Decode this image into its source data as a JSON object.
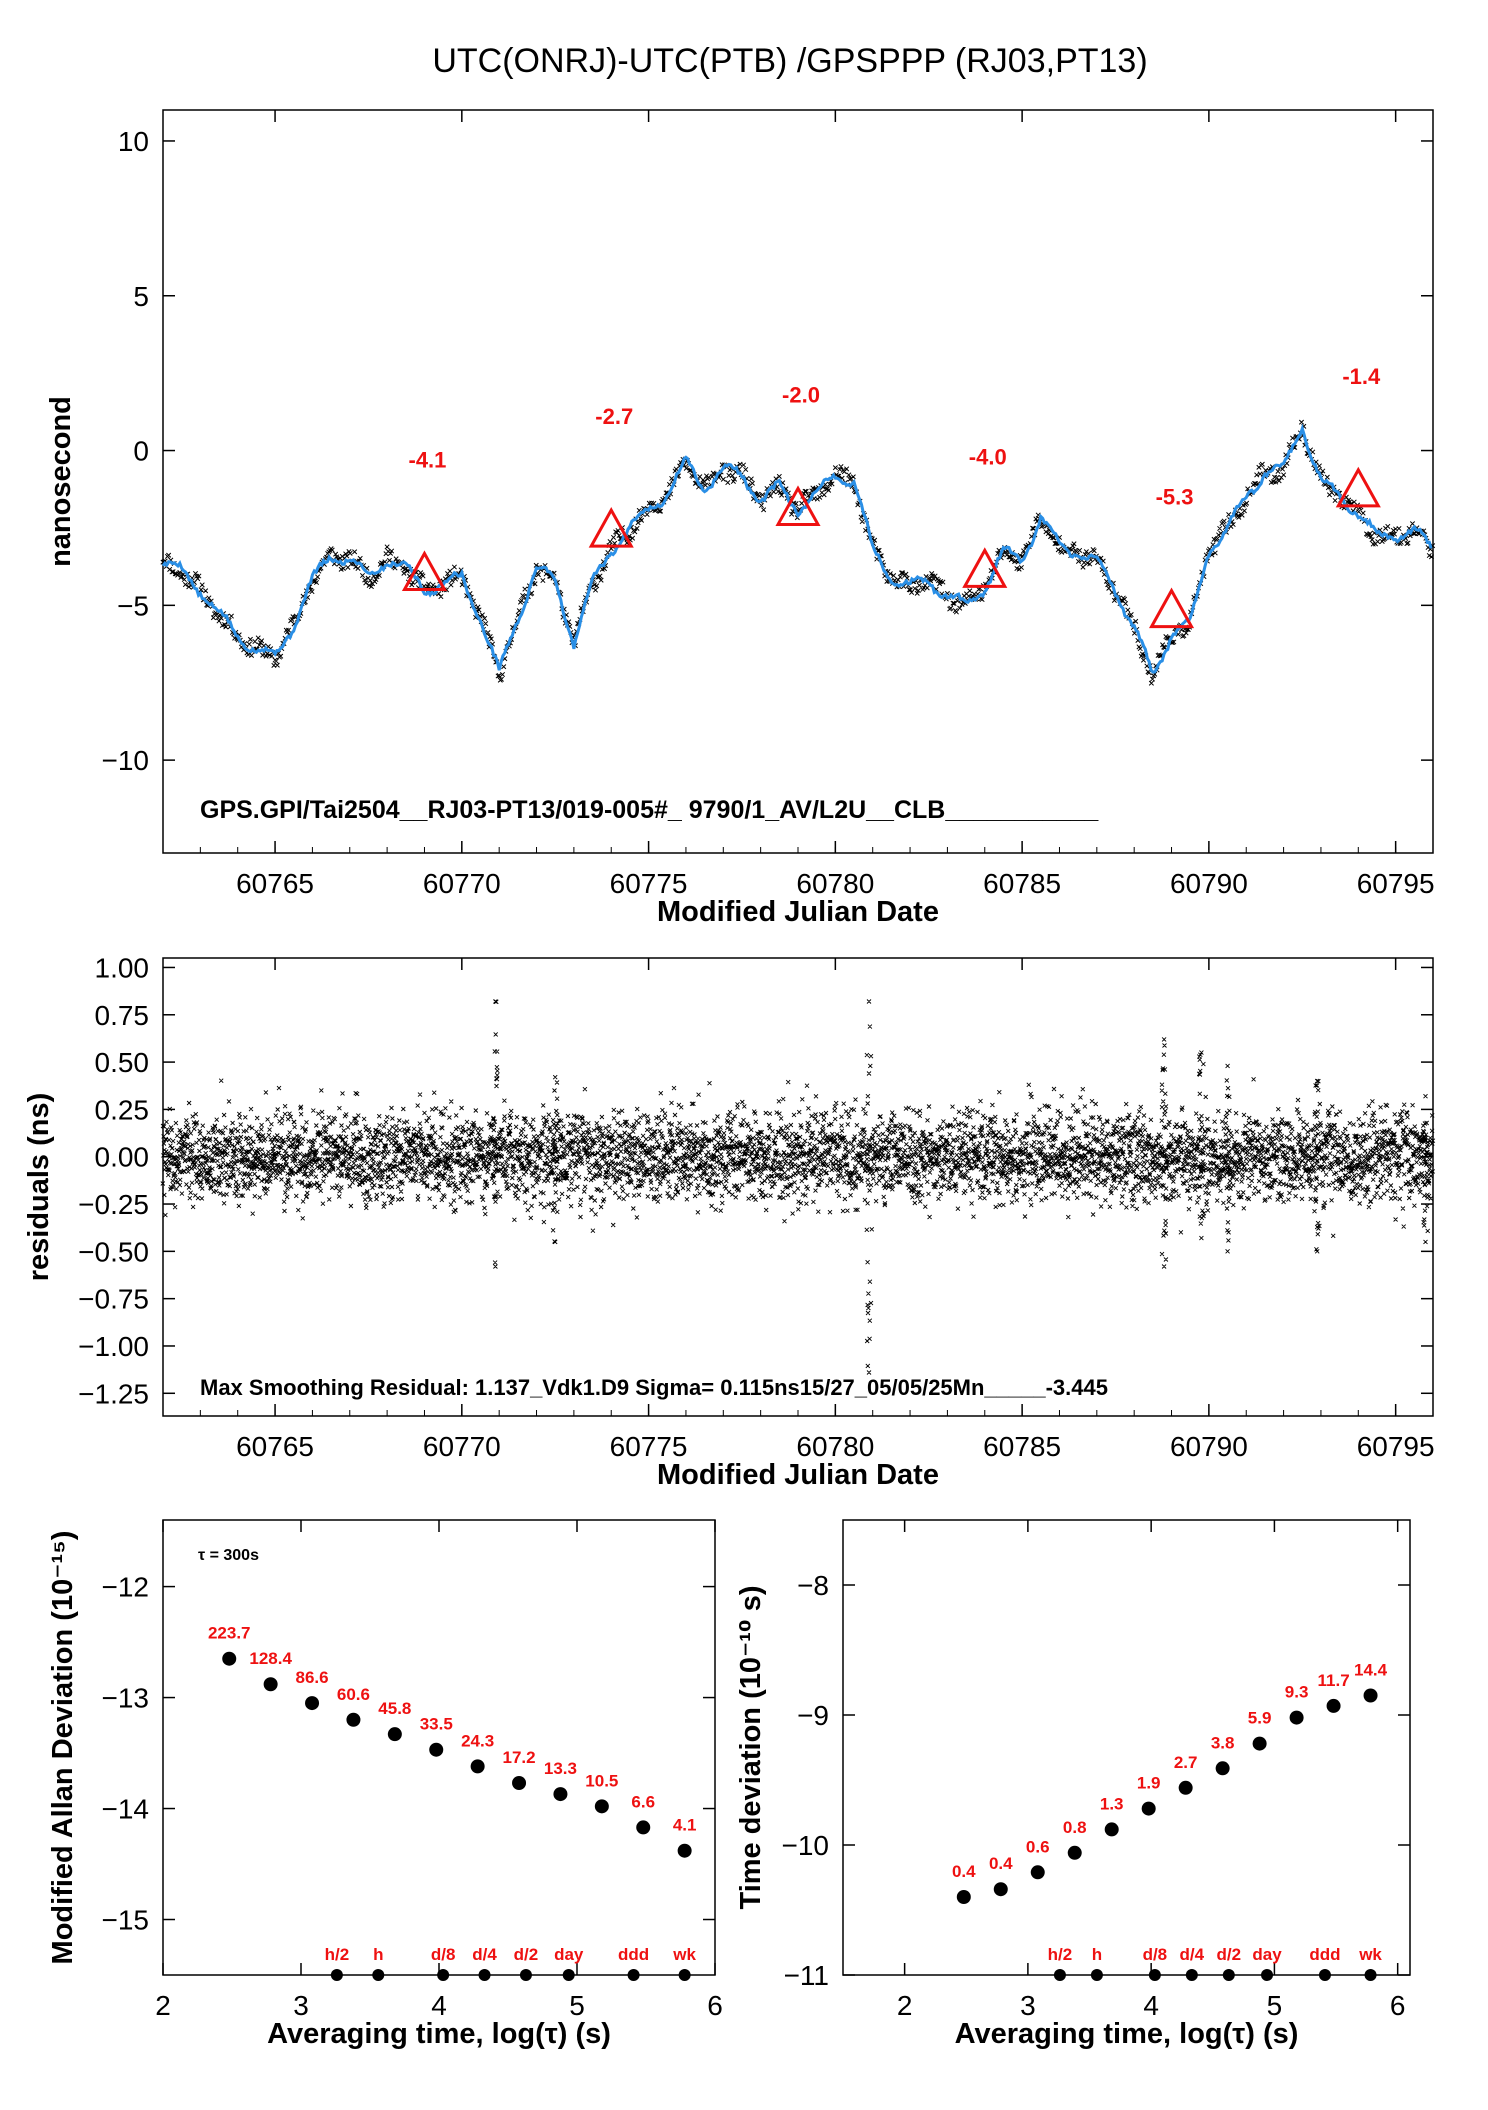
{
  "title": "UTC(ONRJ)-UTC(PTB)  /GPSPPP  (RJ03,PT13)",
  "chart_data": [
    {
      "type": "line",
      "id": "time_series",
      "xlabel": "Modified Julian Date",
      "ylabel": "nanosecond",
      "xlim": [
        60762,
        60796
      ],
      "ylim": [
        -13,
        11
      ],
      "xticks": [
        "60765",
        "60770",
        "60775",
        "60780",
        "60785",
        "60790",
        "60795"
      ],
      "yticks": [
        "10",
        "5",
        "0",
        "−5",
        "−10"
      ],
      "annotation": "GPS.GPI/Tai2504__RJ03-PT13/019-005#_  9790/1_AV/L2U__CLB___________",
      "series_color": "#2a8fe6",
      "series": [
        {
          "x": [
            60762.0,
            60762.5,
            60763.0,
            60763.5,
            60764.0,
            60764.5,
            60765.0,
            60765.5,
            60766.0,
            60766.5,
            60767.0,
            60767.5,
            60768.0,
            60768.5,
            60769.0,
            60769.5,
            60770.0,
            60770.5,
            60771.0,
            60771.5,
            60772.0,
            60772.5,
            60773.0,
            60773.5,
            60774.0,
            60774.5,
            60775.0,
            60775.5,
            60776.0,
            60776.5,
            60777.0,
            60777.5,
            60778.0,
            60778.5,
            60779.0,
            60779.5,
            60780.0,
            60780.5,
            60781.0,
            60781.5,
            60782.0,
            60782.5,
            60783.0,
            60783.5,
            60784.0,
            60784.5,
            60785.0,
            60785.5,
            60786.0,
            60786.5,
            60787.0,
            60787.5,
            60788.0,
            60788.5,
            60789.0,
            60789.5,
            60790.0,
            60790.5,
            60791.0,
            60791.5,
            60792.0,
            60792.5,
            60793.0,
            60793.5,
            60794.0,
            60794.5,
            60795.0,
            60795.5,
            60796.0
          ],
          "y": [
            -3.6,
            -3.9,
            -4.5,
            -5.3,
            -6.0,
            -6.4,
            -6.7,
            -5.6,
            -4.2,
            -3.4,
            -3.5,
            -4.1,
            -3.5,
            -3.8,
            -4.5,
            -4.3,
            -4.1,
            -5.4,
            -7.2,
            -5.4,
            -3.8,
            -4.2,
            -6.2,
            -4.3,
            -3.2,
            -2.5,
            -1.9,
            -1.4,
            -0.4,
            -1.2,
            -0.6,
            -0.8,
            -1.6,
            -1.2,
            -1.9,
            -1.4,
            -0.8,
            -1.0,
            -3.2,
            -4.1,
            -4.4,
            -4.2,
            -4.7,
            -5.0,
            -4.4,
            -3.3,
            -3.5,
            -2.2,
            -3.1,
            -3.3,
            -3.6,
            -4.5,
            -5.7,
            -7.3,
            -5.9,
            -5.6,
            -3.2,
            -2.5,
            -1.5,
            -0.7,
            -0.6,
            0.8,
            -1.0,
            -1.5,
            -2.0,
            -2.8,
            -2.7,
            -2.6,
            -3.2
          ]
        }
      ],
      "markers": [
        {
          "x": 60769.0,
          "y": -4.1,
          "label": "-4.1"
        },
        {
          "x": 60774.0,
          "y": -2.7,
          "label": "-2.7"
        },
        {
          "x": 60779.0,
          "y": -2.0,
          "label": "-2.0"
        },
        {
          "x": 60784.0,
          "y": -4.0,
          "label": "-4.0"
        },
        {
          "x": 60789.0,
          "y": -5.3,
          "label": "-5.3"
        },
        {
          "x": 60794.0,
          "y": -1.4,
          "label": "-1.4"
        }
      ]
    },
    {
      "type": "scatter",
      "id": "residuals",
      "xlabel": "Modified Julian Date",
      "ylabel": "residuals (ns)",
      "xlim": [
        60762,
        60796
      ],
      "ylim": [
        -1.37,
        1.05
      ],
      "xticks": [
        "60765",
        "60770",
        "60775",
        "60780",
        "60785",
        "60790",
        "60795"
      ],
      "yticks": [
        "1.00",
        "0.75",
        "0.50",
        "0.25",
        "0.00",
        "−0.25",
        "−0.50",
        "−0.75",
        "−1.00",
        "−1.25"
      ],
      "annotation": "Max Smoothing Residual: 1.137_Vdk1.D9  Sigma= 0.115ns15/27_05/05/25Mn_____-3.445",
      "sigma": 0.115,
      "spikes": [
        {
          "x": 60770.9,
          "min": -0.58,
          "max": 0.82
        },
        {
          "x": 60772.5,
          "min": -0.45,
          "max": 0.42
        },
        {
          "x": 60780.9,
          "min": -1.14,
          "max": 0.82
        },
        {
          "x": 60788.8,
          "min": -0.58,
          "max": 0.62
        },
        {
          "x": 60789.8,
          "min": -0.43,
          "max": 0.55
        },
        {
          "x": 60790.5,
          "min": -0.5,
          "max": 0.48
        },
        {
          "x": 60792.9,
          "min": -0.5,
          "max": 0.4
        },
        {
          "x": 60795.8,
          "min": -0.45,
          "max": 0.32
        }
      ]
    },
    {
      "type": "scatter",
      "id": "mdev",
      "xlabel": "Averaging time, log(τ) (s)",
      "ylabel": "Modified Allan Deviation (10⁻¹⁵)",
      "xlim": [
        2,
        6
      ],
      "ylim": [
        -15.5,
        -11.4
      ],
      "xticks": [
        "2",
        "3",
        "4",
        "5",
        "6"
      ],
      "yticks": [
        "−12",
        "−13",
        "−14",
        "−15"
      ],
      "tau_note": "τ = 300s",
      "points": [
        {
          "x": 2.48,
          "y": -12.65,
          "label": "223.7"
        },
        {
          "x": 2.78,
          "y": -12.88,
          "label": "128.4"
        },
        {
          "x": 3.08,
          "y": -13.05,
          "label": "86.6"
        },
        {
          "x": 3.38,
          "y": -13.2,
          "label": "60.6"
        },
        {
          "x": 3.68,
          "y": -13.33,
          "label": "45.8"
        },
        {
          "x": 3.98,
          "y": -13.47,
          "label": "33.5"
        },
        {
          "x": 4.28,
          "y": -13.62,
          "label": "24.3"
        },
        {
          "x": 4.58,
          "y": -13.77,
          "label": "17.2"
        },
        {
          "x": 4.88,
          "y": -13.87,
          "label": "13.3"
        },
        {
          "x": 5.18,
          "y": -13.98,
          "label": "10.5"
        },
        {
          "x": 5.48,
          "y": -14.17,
          "label": "6.6"
        },
        {
          "x": 5.78,
          "y": -14.38,
          "label": "4.1"
        }
      ],
      "period_markers": [
        {
          "x": 3.26,
          "label": "h/2"
        },
        {
          "x": 3.56,
          "label": "h"
        },
        {
          "x": 4.03,
          "label": "d/8"
        },
        {
          "x": 4.33,
          "label": "d/4"
        },
        {
          "x": 4.63,
          "label": "d/2"
        },
        {
          "x": 4.94,
          "label": "day"
        },
        {
          "x": 5.41,
          "label": "ddd"
        },
        {
          "x": 5.78,
          "label": "wk"
        }
      ]
    },
    {
      "type": "scatter",
      "id": "tdev",
      "xlabel": "Averaging time, log(τ) (s)",
      "ylabel": "Time deviation (10⁻¹⁰ s)",
      "xlim": [
        1.5,
        6.1
      ],
      "ylim": [
        -11,
        -7.5
      ],
      "xticks": [
        "2",
        "3",
        "4",
        "5",
        "6"
      ],
      "yticks": [
        "−8",
        "−9",
        "−10",
        "−11"
      ],
      "points": [
        {
          "x": 2.48,
          "y": -10.4,
          "label": "0.4"
        },
        {
          "x": 2.78,
          "y": -10.34,
          "label": "0.4"
        },
        {
          "x": 3.08,
          "y": -10.21,
          "label": "0.6"
        },
        {
          "x": 3.38,
          "y": -10.06,
          "label": "0.8"
        },
        {
          "x": 3.68,
          "y": -9.88,
          "label": "1.3"
        },
        {
          "x": 3.98,
          "y": -9.72,
          "label": "1.9"
        },
        {
          "x": 4.28,
          "y": -9.56,
          "label": "2.7"
        },
        {
          "x": 4.58,
          "y": -9.41,
          "label": "3.8"
        },
        {
          "x": 4.88,
          "y": -9.22,
          "label": "5.9"
        },
        {
          "x": 5.18,
          "y": -9.02,
          "label": "9.3"
        },
        {
          "x": 5.48,
          "y": -8.93,
          "label": "11.7"
        },
        {
          "x": 5.78,
          "y": -8.85,
          "label": "14.4"
        }
      ],
      "period_markers": [
        {
          "x": 3.26,
          "label": "h/2"
        },
        {
          "x": 3.56,
          "label": "h"
        },
        {
          "x": 4.03,
          "label": "d/8"
        },
        {
          "x": 4.33,
          "label": "d/4"
        },
        {
          "x": 4.63,
          "label": "d/2"
        },
        {
          "x": 4.94,
          "label": "day"
        },
        {
          "x": 5.41,
          "label": "ddd"
        },
        {
          "x": 5.78,
          "label": "wk"
        }
      ]
    }
  ]
}
